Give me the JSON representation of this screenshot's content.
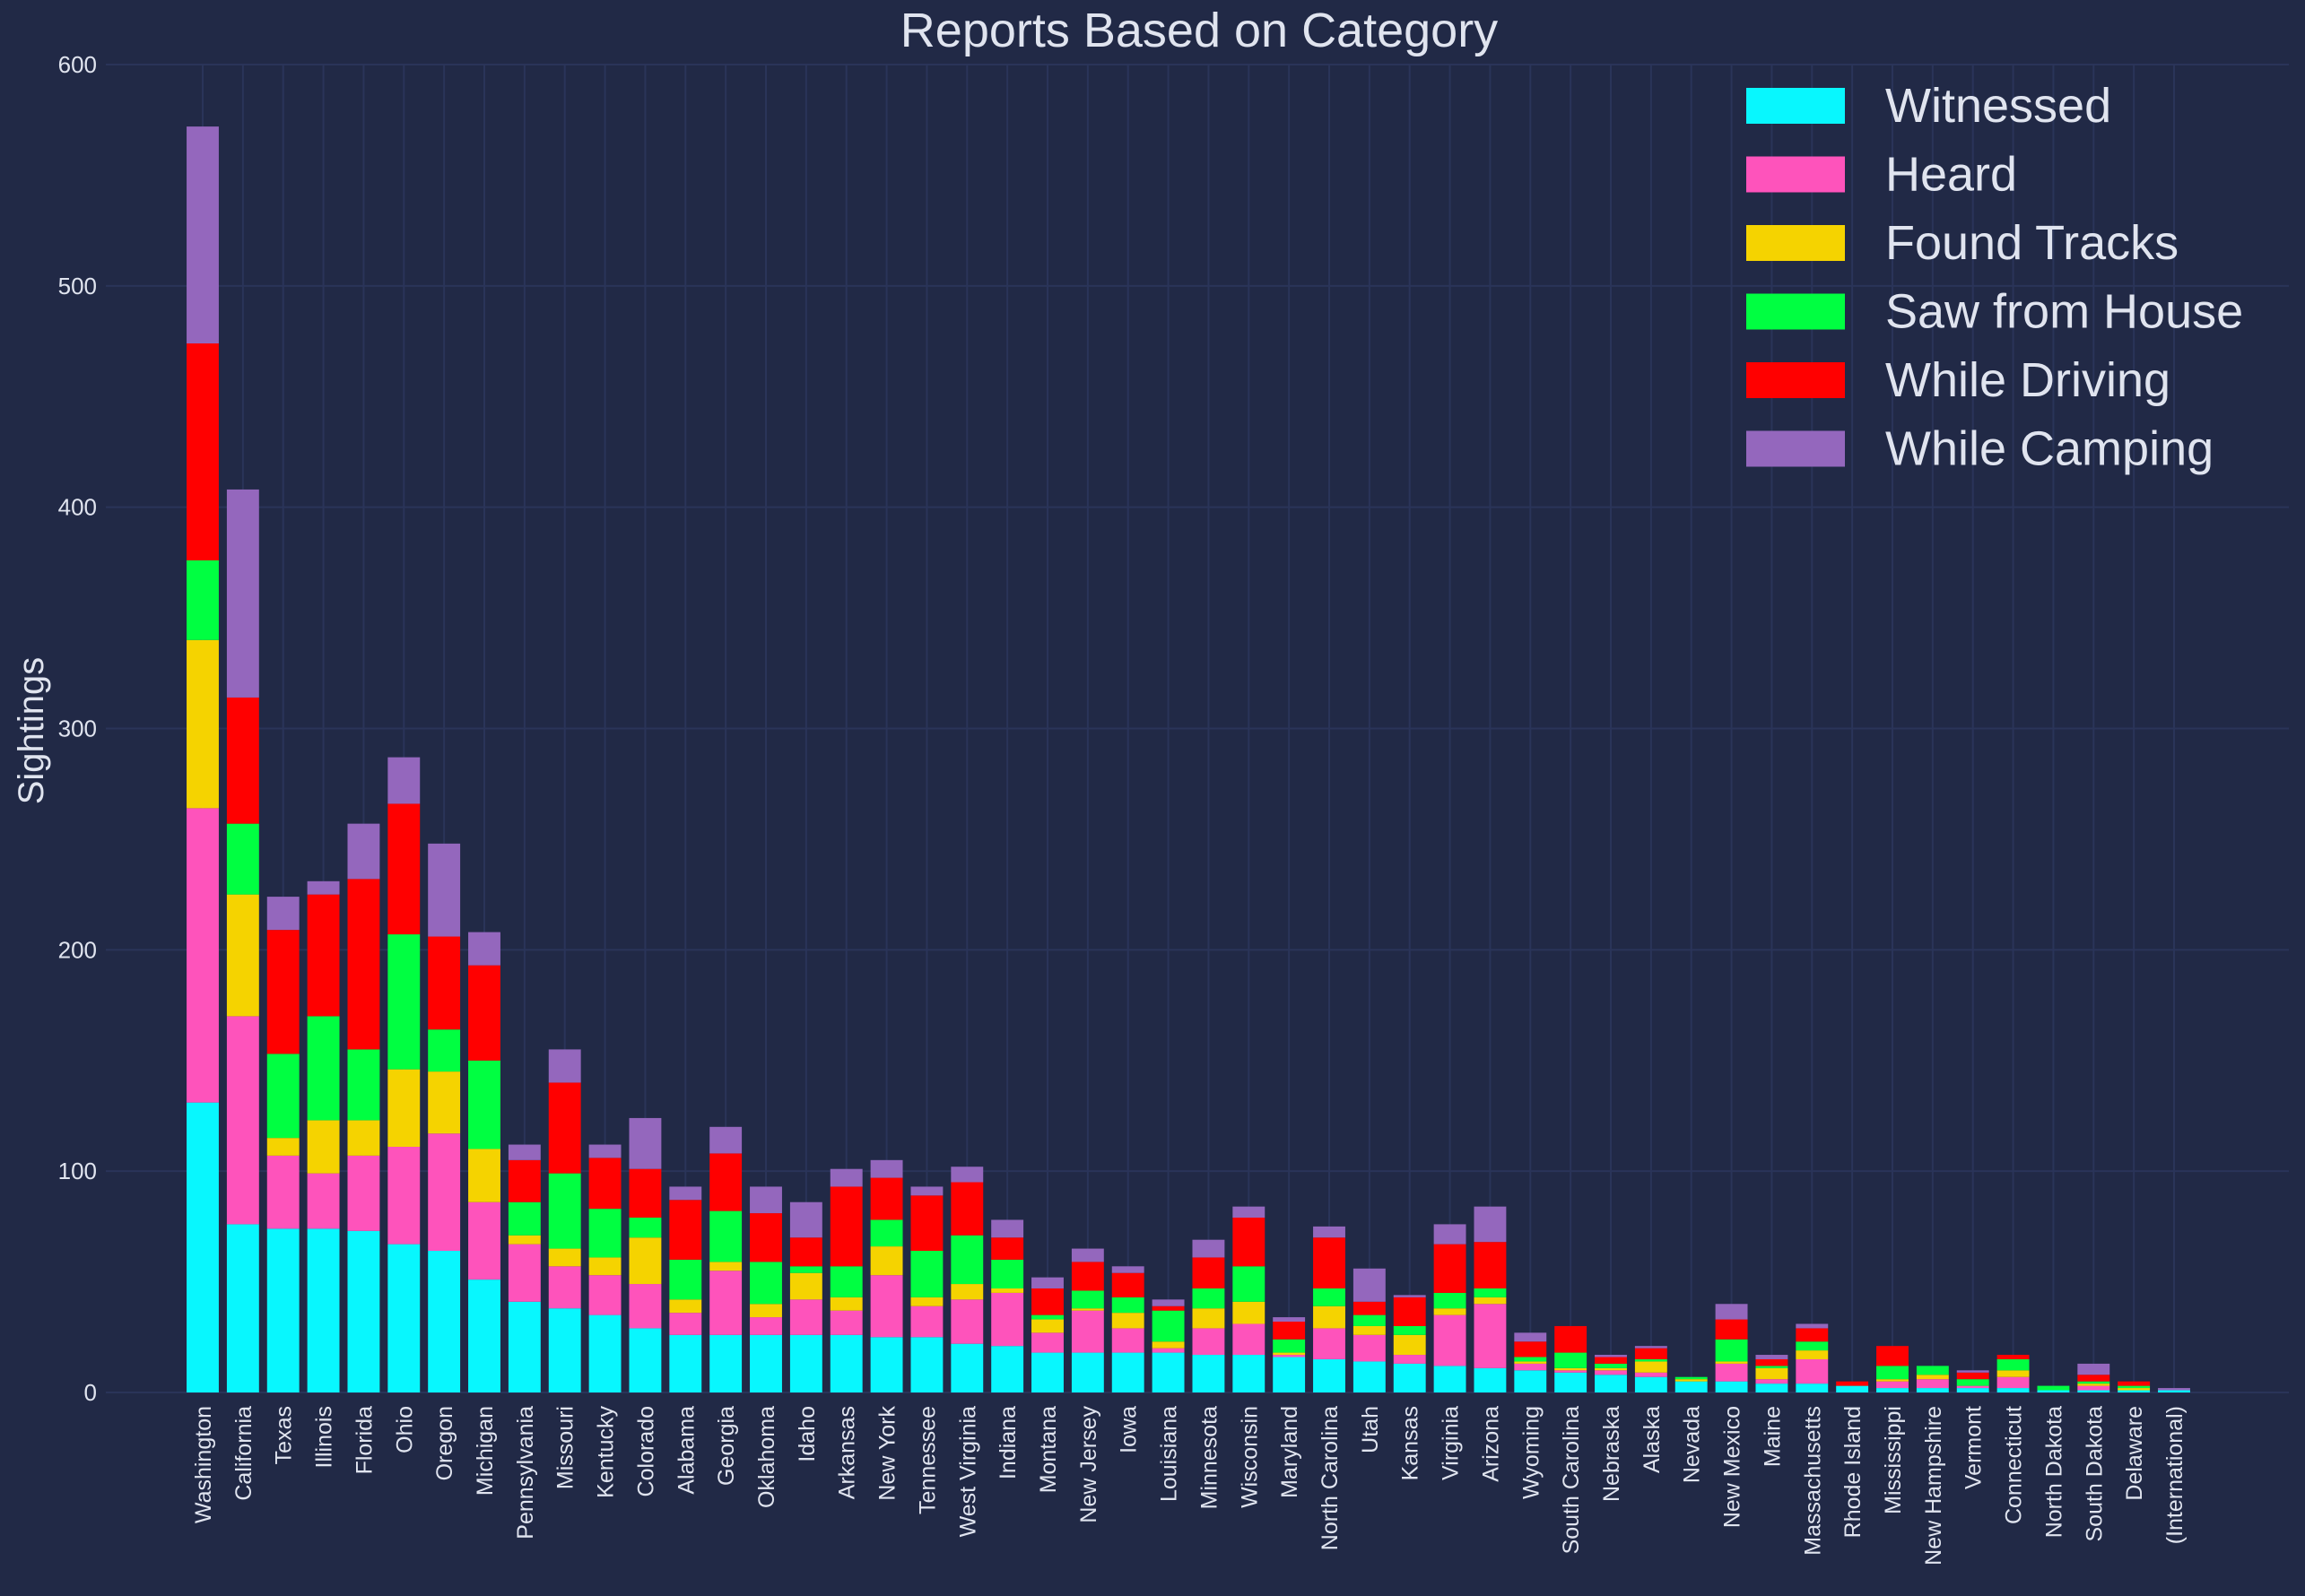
{
  "chart_data": {
    "type": "bar",
    "stacked": true,
    "title": "Reports Based on Category",
    "xlabel": "",
    "ylabel": "Sightings",
    "ylim": [
      0,
      600
    ],
    "yticks": [
      0,
      100,
      200,
      300,
      400,
      500,
      600
    ],
    "grid": true,
    "legend_position": "top-right",
    "background": "#212946",
    "text_color": "#e0e4ef",
    "grid_color": "#2a3459",
    "categories": [
      "Washington",
      "California",
      "Texas",
      "Illinois",
      "Florida",
      "Ohio",
      "Oregon",
      "Michigan",
      "Pennsylvania",
      "Missouri",
      "Kentucky",
      "Colorado",
      "Alabama",
      "Georgia",
      "Oklahoma",
      "Idaho",
      "Arkansas",
      "New York",
      "Tennessee",
      "West Virginia",
      "Indiana",
      "Montana",
      "New Jersey",
      "Iowa",
      "Louisiana",
      "Minnesota",
      "Wisconsin",
      "Maryland",
      "North Carolina",
      "Utah",
      "Kansas",
      "Virginia",
      "Arizona",
      "Wyoming",
      "South Carolina",
      "Nebraska",
      "Alaska",
      "Nevada",
      "New Mexico",
      "Maine",
      "Massachusetts",
      "Rhode Island",
      "Mississippi",
      "New Hampshire",
      "Vermont",
      "Connecticut",
      "North Dakota",
      "South Dakota",
      "Delaware",
      "(International)"
    ],
    "series": [
      {
        "name": "Witnessed",
        "color": "#08F7FE",
        "values": [
          131,
          76,
          74,
          74,
          73,
          67,
          64,
          51,
          41,
          38,
          35,
          29,
          26,
          26,
          26,
          26,
          26,
          25,
          25,
          22,
          21,
          18,
          18,
          18,
          18,
          17,
          17,
          16,
          15,
          14,
          13,
          12,
          11,
          10,
          9,
          8,
          7,
          5,
          5,
          4,
          4,
          3,
          2,
          2,
          2,
          2,
          1,
          1,
          1,
          1
        ]
      },
      {
        "name": "Heard",
        "color": "#FE53BB",
        "values": [
          133,
          94,
          33,
          25,
          34,
          44,
          53,
          35,
          26,
          19,
          18,
          20,
          10,
          29,
          8,
          16,
          11,
          28,
          14,
          20,
          24,
          9,
          19,
          11,
          2,
          12,
          14,
          1,
          14,
          12,
          4,
          23,
          29,
          3,
          1,
          2,
          2,
          0,
          8,
          2,
          11,
          0,
          3,
          4,
          1,
          5,
          0,
          2,
          0,
          0
        ]
      },
      {
        "name": "Found Tracks",
        "color": "#F5D300",
        "values": [
          76,
          55,
          8,
          24,
          16,
          35,
          28,
          24,
          4,
          8,
          8,
          21,
          6,
          4,
          6,
          12,
          6,
          13,
          4,
          7,
          2,
          6,
          1,
          7,
          3,
          9,
          10,
          1,
          10,
          4,
          9,
          3,
          3,
          1,
          1,
          1,
          5,
          1,
          1,
          5,
          4,
          0,
          1,
          2,
          0,
          3,
          0,
          1,
          1,
          0
        ]
      },
      {
        "name": "Saw from House",
        "color": "#00ff41",
        "values": [
          36,
          32,
          38,
          47,
          32,
          61,
          19,
          40,
          15,
          34,
          22,
          9,
          18,
          23,
          19,
          3,
          14,
          12,
          21,
          22,
          13,
          2,
          8,
          7,
          14,
          9,
          16,
          6,
          8,
          5,
          4,
          7,
          4,
          2,
          7,
          2,
          1,
          1,
          10,
          1,
          4,
          0,
          6,
          4,
          3,
          5,
          2,
          1,
          1,
          0
        ]
      },
      {
        "name": "While Driving",
        "color": "#FF0000",
        "values": [
          98,
          57,
          56,
          55,
          77,
          59,
          42,
          43,
          19,
          41,
          23,
          22,
          27,
          26,
          22,
          13,
          36,
          19,
          25,
          24,
          10,
          12,
          13,
          11,
          2,
          14,
          22,
          8,
          23,
          6,
          13,
          22,
          21,
          7,
          12,
          3,
          5,
          0,
          9,
          3,
          6,
          2,
          9,
          0,
          3,
          2,
          0,
          3,
          2,
          0
        ]
      },
      {
        "name": "While Camping",
        "color": "#9467bd",
        "values": [
          98,
          94,
          15,
          6,
          25,
          21,
          42,
          15,
          7,
          15,
          6,
          23,
          6,
          12,
          12,
          16,
          8,
          8,
          4,
          7,
          8,
          5,
          6,
          3,
          3,
          8,
          5,
          2,
          5,
          15,
          1,
          9,
          16,
          4,
          0,
          1,
          1,
          0,
          7,
          2,
          2,
          0,
          0,
          0,
          1,
          0,
          0,
          5,
          0,
          1
        ]
      }
    ]
  }
}
